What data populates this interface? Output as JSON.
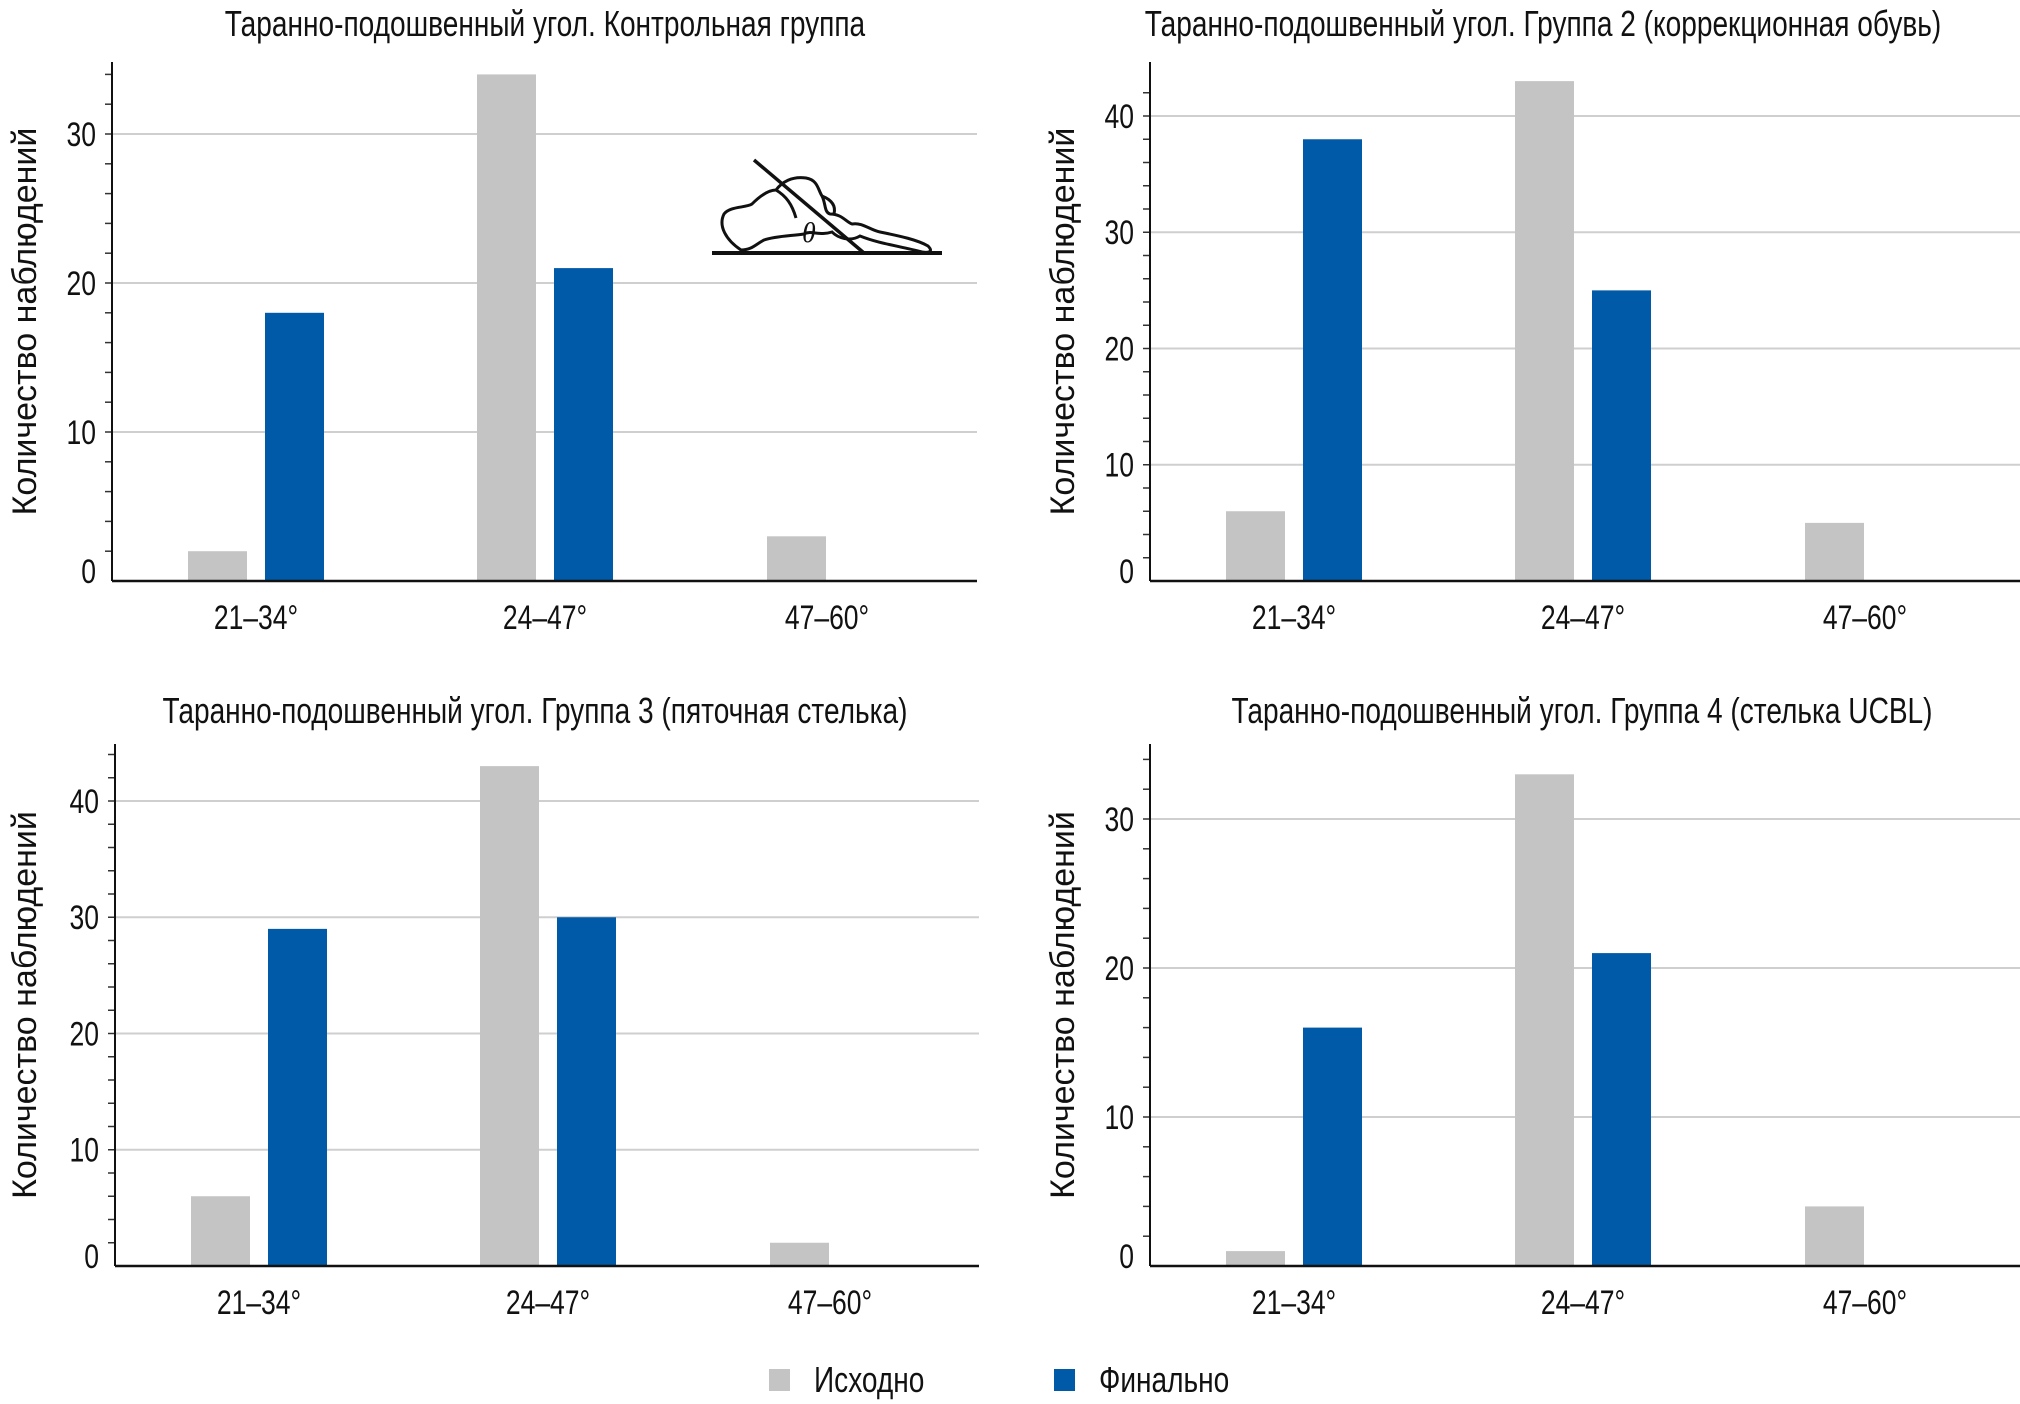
{
  "colors": {
    "baseline": "#c4c4c4",
    "final": "#005aa8",
    "grid": "#cfcfcf",
    "axis": "#111111"
  },
  "legend": {
    "items": [
      {
        "label": "Исходно",
        "series": "baseline"
      },
      {
        "label": "Финально",
        "series": "final"
      }
    ]
  },
  "foot_icon": {
    "symbol": "θ"
  },
  "chart_data": [
    {
      "type": "bar",
      "title": "Таранно-подошвенный угол. Контрольная группа",
      "xlabel": "",
      "ylabel": "Количество наблюдений",
      "categories": [
        "21–34°",
        "24–47°",
        "47–60°"
      ],
      "series": [
        {
          "name": "Исходно",
          "values": [
            2,
            34,
            3
          ]
        },
        {
          "name": "Финально",
          "values": [
            18,
            21,
            0
          ]
        }
      ],
      "yticks": [
        0,
        10,
        20,
        30
      ],
      "ylim": [
        0,
        35
      ],
      "minor_tick_step": 2,
      "grid": true,
      "has_foot_illustration": true
    },
    {
      "type": "bar",
      "title": "Таранно-подошвенный угол. Группа 2 (коррекционная обувь)",
      "xlabel": "",
      "ylabel": "Количество наблюдений",
      "categories": [
        "21–34°",
        "24–47°",
        "47–60°"
      ],
      "series": [
        {
          "name": "Исходно",
          "values": [
            6,
            43,
            5
          ]
        },
        {
          "name": "Финально",
          "values": [
            38,
            25,
            0
          ]
        }
      ],
      "yticks": [
        0,
        10,
        20,
        30,
        40
      ],
      "ylim": [
        0,
        45
      ],
      "minor_tick_step": 2,
      "grid": true
    },
    {
      "type": "bar",
      "title": "Таранно-подошвенный угол. Группа 3 (пяточная стелька)",
      "xlabel": "",
      "ylabel": "Количество наблюдений",
      "categories": [
        "21–34°",
        "24–47°",
        "47–60°"
      ],
      "series": [
        {
          "name": "Исходно",
          "values": [
            6,
            43,
            2
          ]
        },
        {
          "name": "Финально",
          "values": [
            29,
            30,
            0
          ]
        }
      ],
      "yticks": [
        0,
        10,
        20,
        30,
        40
      ],
      "ylim": [
        0,
        45
      ],
      "minor_tick_step": 2,
      "grid": true
    },
    {
      "type": "bar",
      "title": "Таранно-подошвенный угол. Группа 4 (стелька UCBL)",
      "xlabel": "",
      "ylabel": "Количество наблюдений",
      "categories": [
        "21–34°",
        "24–47°",
        "47–60°"
      ],
      "series": [
        {
          "name": "Исходно",
          "values": [
            1,
            33,
            4
          ]
        },
        {
          "name": "Финально",
          "values": [
            16,
            21,
            0
          ]
        }
      ],
      "yticks": [
        0,
        10,
        20,
        30
      ],
      "ylim": [
        0,
        35
      ],
      "minor_tick_step": 2,
      "grid": true
    }
  ]
}
